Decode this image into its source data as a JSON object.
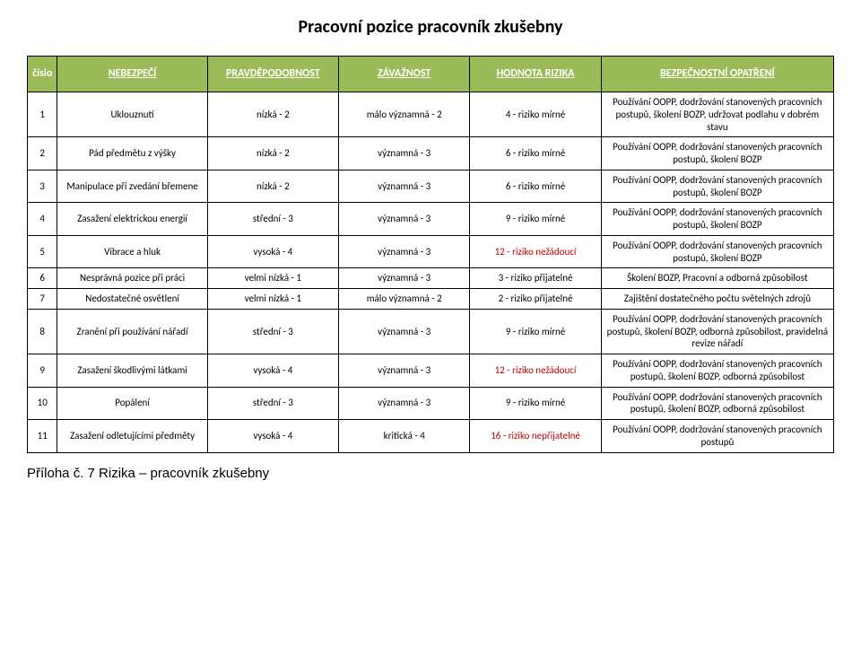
{
  "title": "Pracovní pozice pracovník zkušebny",
  "columns": {
    "num": "číslo",
    "hazard": "NEBEZPEČÍ",
    "probability": "PRAVDĚPODOBNOST",
    "severity": "ZÁVAŽNOST",
    "risk": "HODNOTA RIZIKA",
    "measure": "BEZPEČNOSTNÍ OPATŘENÍ"
  },
  "rows": [
    {
      "num": "1",
      "hazard": "Uklouznutí",
      "prob": "nízká - 2",
      "sev": "málo významná - 2",
      "risk": "4 - riziko mírné",
      "risk_red": false,
      "meas": "Používání OOPP, dodržování stanovených pracovních postupů, školení BOZP, udržovat podlahu v dobrém stavu"
    },
    {
      "num": "2",
      "hazard": "Pád předmětu z výšky",
      "prob": "nízká - 2",
      "sev": "významná - 3",
      "risk": "6 - riziko mírné",
      "risk_red": false,
      "meas": "Používání OOPP, dodržování stanovených pracovních postupů, školení BOZP"
    },
    {
      "num": "3",
      "hazard": "Manipulace při zvedání břemene",
      "prob": "nízká - 2",
      "sev": "významná - 3",
      "risk": "6 - riziko mírné",
      "risk_red": false,
      "meas": "Používání OOPP, dodržování stanovených pracovních postupů, školení BOZP"
    },
    {
      "num": "4",
      "hazard": "Zasažení elektrickou energií",
      "prob": "střední - 3",
      "sev": "významná - 3",
      "risk": "9 - riziko mírné",
      "risk_red": false,
      "meas": "Používání OOPP, dodržování stanovených pracovních postupů, školení BOZP"
    },
    {
      "num": "5",
      "hazard": "Vibrace a hluk",
      "prob": "vysoká - 4",
      "sev": "významná - 3",
      "risk": "12 - riziko nežádoucí",
      "risk_red": true,
      "meas": "Používání OOPP, dodržování stanovených pracovních postupů, školení BOZP"
    },
    {
      "num": "6",
      "hazard": "Nesprávná pozice při práci",
      "prob": "velmi nízká - 1",
      "sev": "významná - 3",
      "risk": "3 - riziko  přijatelné",
      "risk_red": false,
      "meas": "Školení BOZP, Pracovní a odborná způsobilost"
    },
    {
      "num": "7",
      "hazard": "Nedostatečné osvětlení",
      "prob": "velmi nízká - 1",
      "sev": "málo významná - 2",
      "risk": "2 - riziko  přijatelné",
      "risk_red": false,
      "meas": "Zajištění dostatečného počtu světelných zdrojů"
    },
    {
      "num": "8",
      "hazard": "Zranění při používání nářadí",
      "prob": "střední - 3",
      "sev": "významná - 3",
      "risk": "9 - riziko mírné",
      "risk_red": false,
      "meas": "Používání OOPP, dodržování stanovených pracovních postupů, školení BOZP, odborná způsobilost, pravidelná revize nářadí"
    },
    {
      "num": "9",
      "hazard": "Zasažení škodlivými látkami",
      "prob": "vysoká - 4",
      "sev": "významná - 3",
      "risk": "12 - riziko nežádoucí",
      "risk_red": true,
      "meas": "Používání OOPP, dodržování stanovených pracovních postupů, školení BOZP, odborná způsobilost"
    },
    {
      "num": "10",
      "hazard": "Popálení",
      "prob": "střední - 3",
      "sev": "významná - 3",
      "risk": "9 - riziko mírné",
      "risk_red": false,
      "meas": "Používání OOPP, dodržování stanovených pracovních postupů, školení BOZP, odborná způsobilost"
    },
    {
      "num": "11",
      "hazard": "Zasažení odletujícími předměty",
      "prob": "vysoká - 4",
      "sev": "kritická - 4",
      "risk": "16 -  riziko nepřijatelné",
      "risk_red": true,
      "meas": "Používání OOPP, dodržování stanovených pracovních postupů"
    }
  ],
  "footer": "Příloha č. 7  Rizika – pracovník zkušebny",
  "colors": {
    "header_bg": "#9bbb59",
    "header_text": "#ffffff",
    "border": "#000000",
    "red_text": "#c00000",
    "background": "#ffffff"
  }
}
